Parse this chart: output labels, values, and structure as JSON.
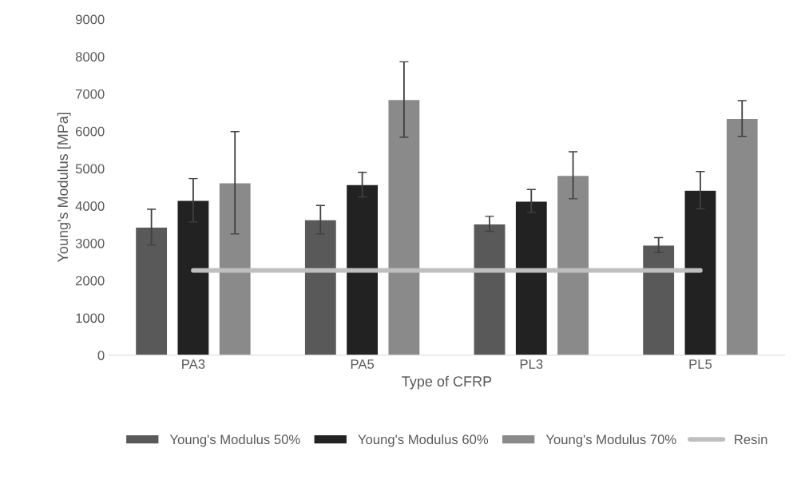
{
  "chart_data": {
    "type": "bar",
    "xlabel": "Type of CFRP",
    "ylabel": "Young's Modulus [MPa]",
    "categories": [
      "PA3",
      "PA5",
      "PL3",
      "PL5"
    ],
    "series": [
      {
        "name": "Young's Modulus 50%",
        "color": "#595959",
        "values": [
          3430,
          3630,
          3520,
          2950
        ],
        "errors": [
          480,
          380,
          200,
          200
        ]
      },
      {
        "name": "Young's Modulus 60%",
        "color": "#222222",
        "values": [
          4150,
          4570,
          4130,
          4420
        ],
        "errors": [
          580,
          330,
          310,
          500
        ]
      },
      {
        "name": "Young's Modulus 70%",
        "color": "#8a8a8a",
        "values": [
          4620,
          6850,
          4820,
          6340
        ],
        "errors": [
          1370,
          1010,
          630,
          480
        ]
      },
      {
        "name": "Resin",
        "type": "line",
        "color": "#bfbfbf",
        "values": [
          2270,
          2270,
          2270,
          2270
        ]
      }
    ],
    "ylim": [
      0,
      9000
    ],
    "yticks": [
      0,
      1000,
      2000,
      3000,
      4000,
      5000,
      6000,
      7000,
      8000,
      9000
    ],
    "grid": false,
    "legend": "bottom"
  }
}
